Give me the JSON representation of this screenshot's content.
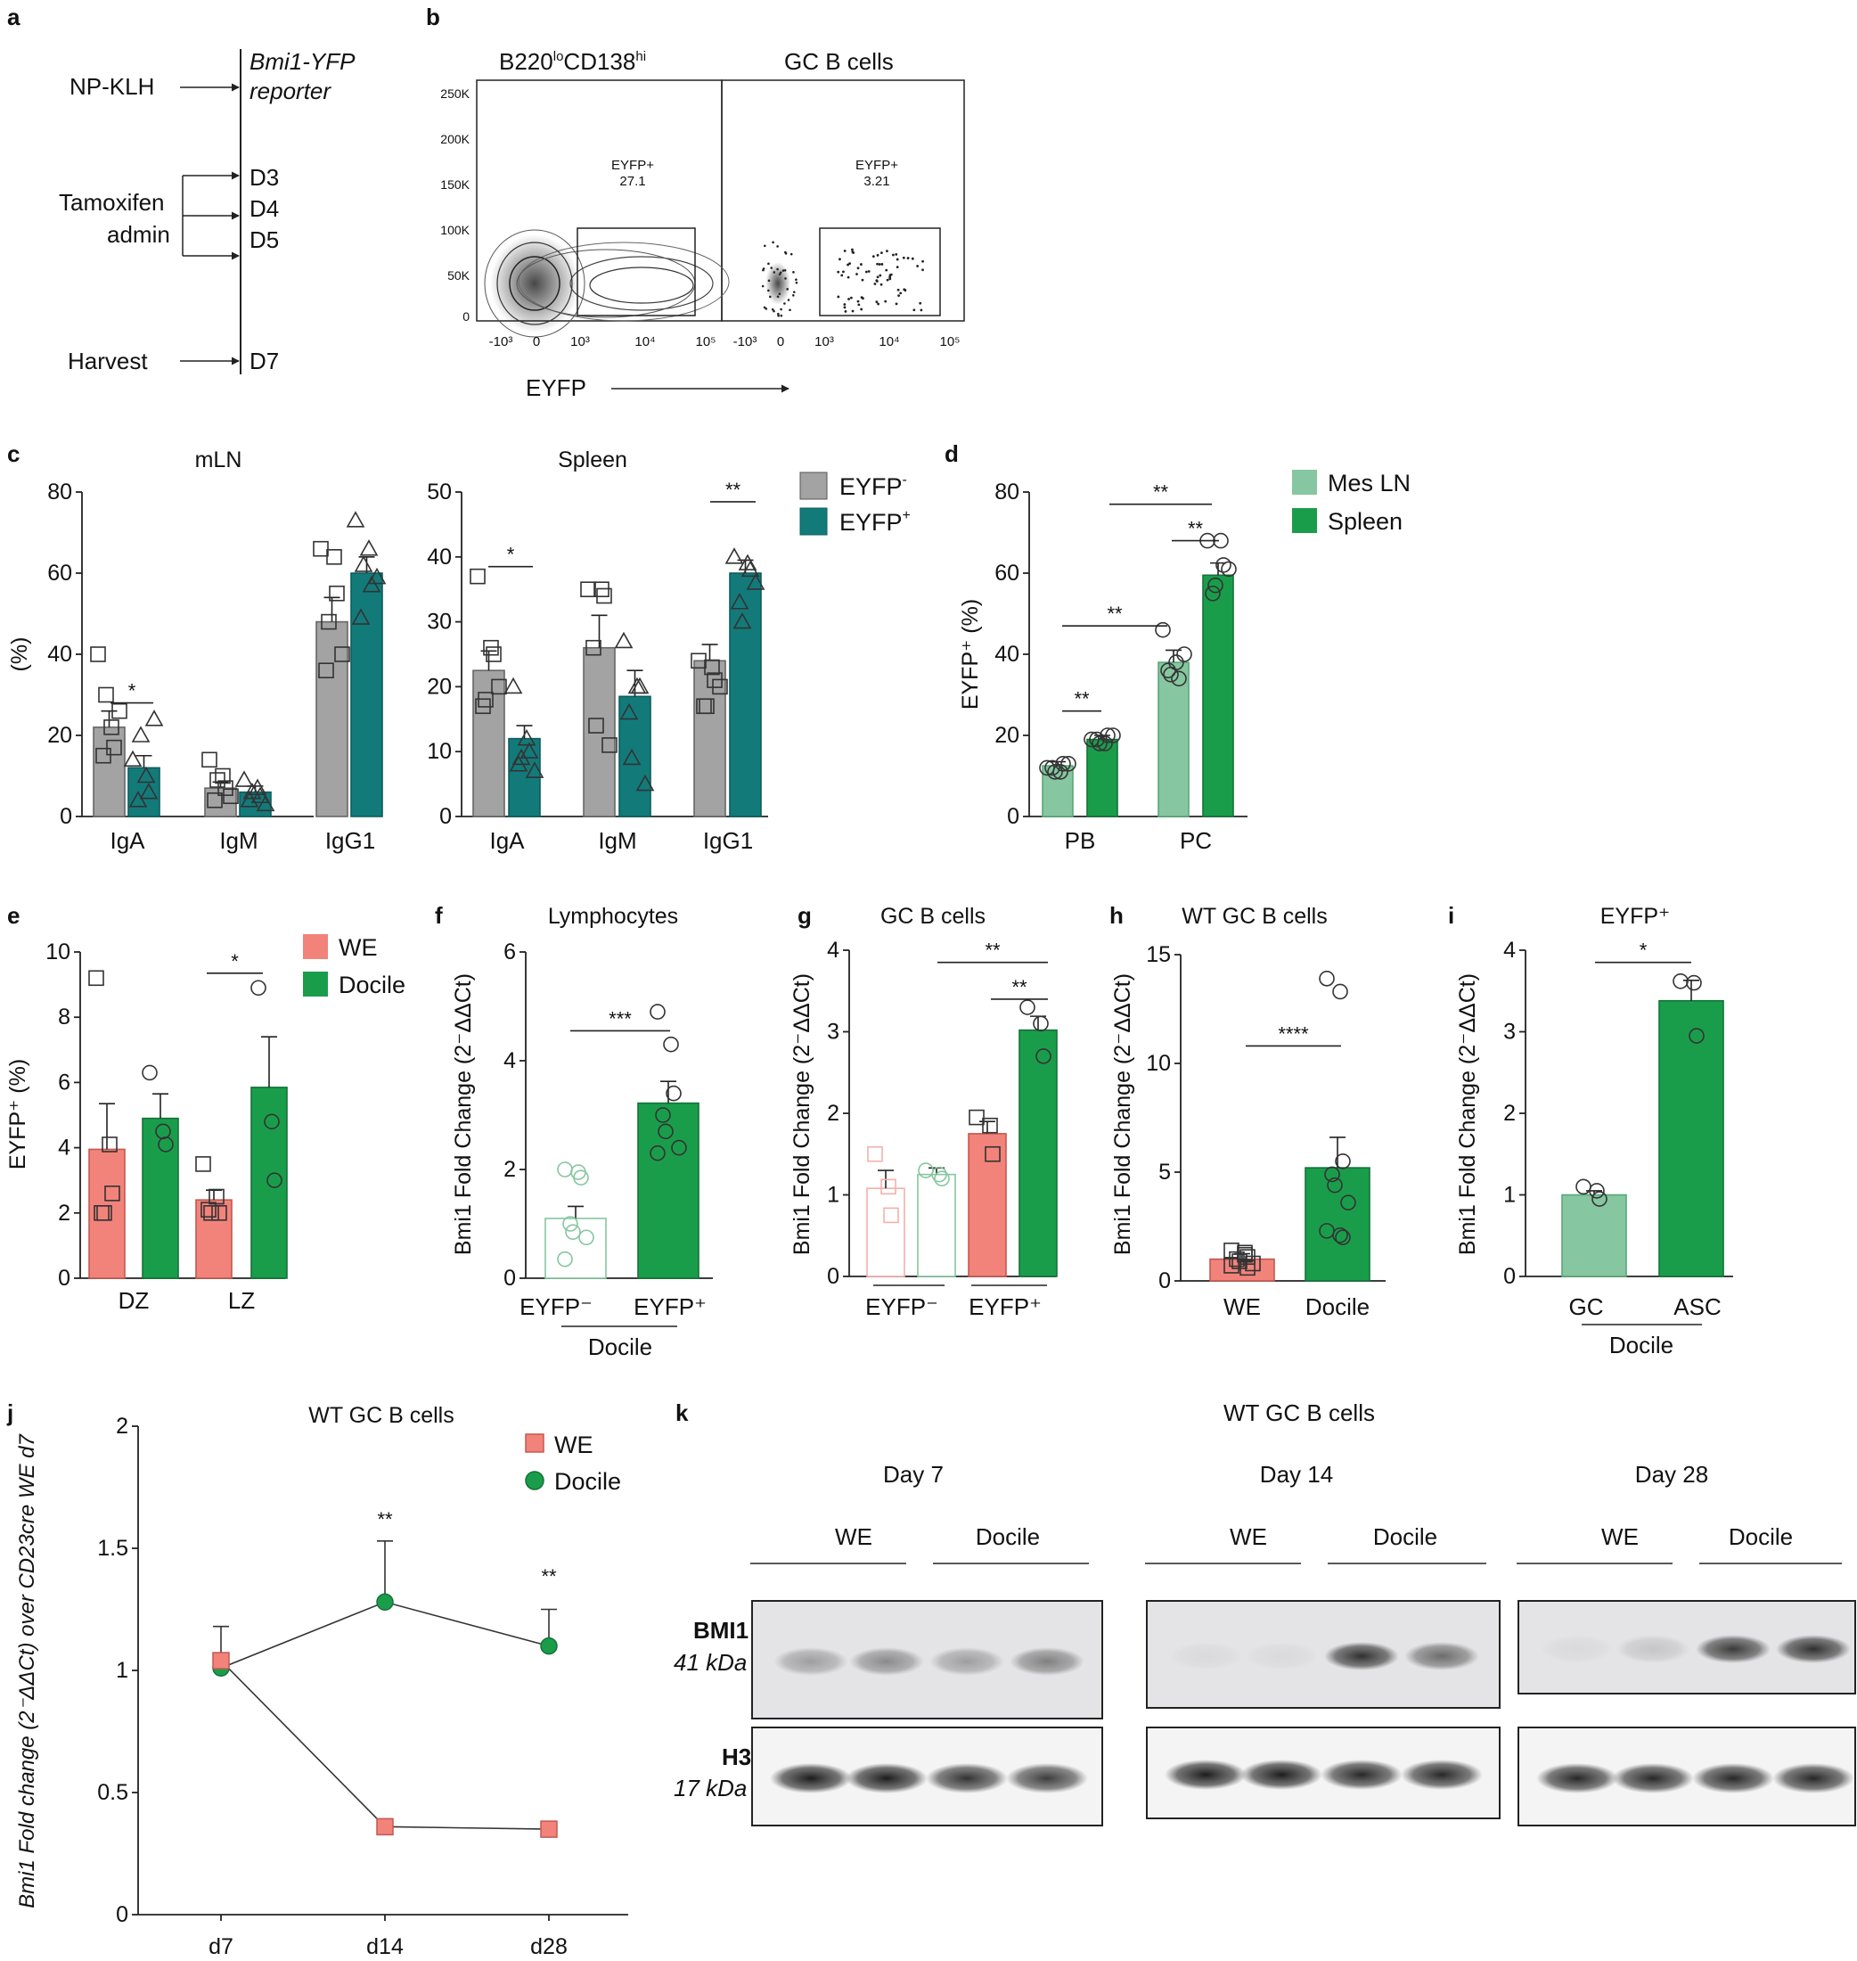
{
  "colors": {
    "gray": "#a3a3a3",
    "teal": "#137a7a",
    "light_green": "#86c6a0",
    "green": "#1a9d4b",
    "salmon": "#f2837b",
    "pale_salmon": "#f4b0aa"
  },
  "panels": {
    "a": {
      "label": "a",
      "stimulus": "NP-KLH",
      "reporter_line1": "Bmi1-YFP",
      "reporter_line2": "reporter",
      "tamoxifen_line1": "Tamoxifen",
      "tamoxifen_line2": "admin",
      "harvest": "Harvest",
      "days": [
        "D3",
        "D4",
        "D5",
        "D7"
      ]
    },
    "b": {
      "label": "b",
      "plots": [
        {
          "title_main": "B220",
          "title_sup1": "lo",
          "title_mid": "CD138",
          "title_sup2": "hi",
          "gate_name": "EYFP+",
          "gate_value": "27.1"
        },
        {
          "title": "GC B cells",
          "gate_name": "EYFP+",
          "gate_value": "3.21"
        }
      ],
      "y_ticks": [
        "250K",
        "200K",
        "150K",
        "100K",
        "50K",
        "0"
      ],
      "x_ticks": [
        "-10³",
        "0",
        "10³",
        "10⁴",
        "10⁵"
      ],
      "xlabel": "EYFP"
    },
    "c": {
      "label": "c"
    },
    "d": {
      "label": "d"
    },
    "e": {
      "label": "e"
    },
    "f": {
      "label": "f"
    },
    "g": {
      "label": "g"
    },
    "h": {
      "label": "h"
    },
    "i": {
      "label": "i"
    },
    "j": {
      "label": "j"
    },
    "k": {
      "label": "k",
      "title": "WT GC B cells",
      "days": [
        "Day 7",
        "Day 14",
        "Day 28"
      ],
      "groups": [
        "WE",
        "Docile"
      ],
      "bmi1": "BMI1",
      "bmi1_kda": "41 kDa",
      "h3": "H3",
      "h3_kda": "17 kDa"
    }
  },
  "chart_data": [
    {
      "id": "c_mln",
      "type": "bar",
      "title": "mLN",
      "ylabel": "(%)",
      "ylim": [
        0,
        80
      ],
      "yticks": [
        0,
        20,
        40,
        60,
        80
      ],
      "categories": [
        "IgA",
        "IgM",
        "IgG1"
      ],
      "series": [
        {
          "name": "EYFP-",
          "values": [
            22,
            7,
            48
          ],
          "errors": [
            4,
            1.5,
            6
          ]
        },
        {
          "name": "EYFP+",
          "values": [
            12,
            6,
            60
          ],
          "errors": [
            3,
            1.5,
            4
          ]
        }
      ],
      "significance": [
        {
          "category": "IgA",
          "label": "*"
        }
      ]
    },
    {
      "id": "c_spleen",
      "type": "bar",
      "title": "Spleen",
      "ylabel": "",
      "ylim": [
        0,
        50
      ],
      "yticks": [
        0,
        10,
        20,
        30,
        40,
        50
      ],
      "categories": [
        "IgA",
        "IgM",
        "IgG1"
      ],
      "series": [
        {
          "name": "EYFP-",
          "values": [
            22.5,
            26,
            24
          ],
          "errors": [
            3,
            5,
            2.5
          ]
        },
        {
          "name": "EYFP+",
          "values": [
            12,
            18.5,
            37.5
          ],
          "errors": [
            2,
            4,
            2
          ]
        }
      ],
      "significance": [
        {
          "category": "IgA",
          "label": "*"
        },
        {
          "category": "IgG1",
          "label": "**"
        }
      ],
      "legend": [
        {
          "name": "EYFP",
          "sup": "-"
        },
        {
          "name": "EYFP",
          "sup": "+"
        }
      ]
    },
    {
      "id": "d",
      "type": "bar",
      "title": "",
      "ylabel": "EYFP⁺ (%)",
      "ylim": [
        0,
        80
      ],
      "yticks": [
        0,
        20,
        40,
        60,
        80
      ],
      "categories": [
        "PB",
        "PC"
      ],
      "series": [
        {
          "name": "Mes LN",
          "values": [
            12.5,
            38
          ],
          "errors": [
            1,
            3
          ]
        },
        {
          "name": "Spleen",
          "values": [
            19,
            59.5
          ],
          "errors": [
            1,
            3
          ]
        }
      ],
      "significance": [
        "**",
        "**",
        "**",
        "**"
      ]
    },
    {
      "id": "e",
      "type": "bar",
      "title": "",
      "ylabel": "EYFP⁺ (%)",
      "ylim": [
        0,
        10
      ],
      "yticks": [
        0,
        2,
        4,
        6,
        8,
        10
      ],
      "categories": [
        "DZ",
        "LZ"
      ],
      "series": [
        {
          "name": "WE",
          "values": [
            3.95,
            2.4
          ],
          "errors": [
            1.4,
            0.3
          ]
        },
        {
          "name": "Docile",
          "values": [
            4.9,
            5.85
          ],
          "errors": [
            0.75,
            1.55
          ]
        }
      ],
      "significance": [
        {
          "category": "LZ",
          "label": "*"
        }
      ]
    },
    {
      "id": "f",
      "type": "bar",
      "title": "Lymphocytes",
      "ylabel": "Bmi1 Fold Change (2⁻ΔΔCt)",
      "ylim": [
        0,
        6
      ],
      "yticks": [
        0,
        2,
        4,
        6
      ],
      "categories": [
        "EYFP⁻",
        "EYFP⁺"
      ],
      "group_label": "Docile",
      "values": [
        1.1,
        3.22
      ],
      "errors": [
        0.22,
        0.4
      ],
      "significance": "***"
    },
    {
      "id": "g",
      "type": "bar",
      "title": "GC B cells",
      "ylabel": "Bmi1 Fold Change (2⁻ΔΔCt)",
      "ylim": [
        0,
        4
      ],
      "yticks": [
        0,
        1,
        2,
        3,
        4
      ],
      "categories": [
        "EYFP⁻",
        "EYFP⁺"
      ],
      "series": [
        {
          "name": "WE",
          "values": [
            1.08,
            1.75
          ],
          "errors": [
            0.22,
            0.15
          ]
        },
        {
          "name": "Docile",
          "values": [
            1.25,
            3.02
          ],
          "errors": [
            0.08,
            0.17
          ]
        }
      ],
      "significance": [
        "**",
        "**"
      ]
    },
    {
      "id": "h",
      "type": "bar",
      "title": "WT GC B cells",
      "ylabel": "Bmi1 Fold Change (2⁻ΔΔCt)",
      "ylim": [
        0,
        15
      ],
      "yticks": [
        0,
        5,
        10,
        15
      ],
      "categories": [
        "WE",
        "Docile"
      ],
      "values": [
        1.0,
        5.2
      ],
      "errors": [
        0.25,
        1.4
      ],
      "significance": "****"
    },
    {
      "id": "i",
      "type": "bar",
      "title": "EYFP⁺",
      "ylabel": "Bmi1 Fold Change (2⁻ΔΔCt)",
      "ylim": [
        0,
        4
      ],
      "yticks": [
        0,
        1,
        2,
        3,
        4
      ],
      "categories": [
        "GC",
        "ASC"
      ],
      "group_label": "Docile",
      "values": [
        1.0,
        3.38
      ],
      "errors": [
        0.05,
        0.25
      ],
      "significance": "*"
    },
    {
      "id": "j",
      "type": "line",
      "title": "WT GC B cells",
      "ylabel": "Bmi1 Fold change (2⁻ΔΔCt) over CD23cre WE d7",
      "ylim": [
        0,
        2
      ],
      "yticks": [
        0.0,
        0.5,
        1.0,
        1.5,
        2.0
      ],
      "x": [
        "d7",
        "d14",
        "d28"
      ],
      "series": [
        {
          "name": "WE",
          "values": [
            1.04,
            0.36,
            0.35
          ],
          "errors": [
            0.14,
            0.0,
            0.03
          ]
        },
        {
          "name": "Docile",
          "values": [
            1.01,
            1.28,
            1.1
          ],
          "errors": [
            0.0,
            0.25,
            0.15
          ]
        }
      ],
      "significance": [
        {
          "x": "d14",
          "label": "**"
        },
        {
          "x": "d28",
          "label": "**"
        }
      ]
    }
  ]
}
